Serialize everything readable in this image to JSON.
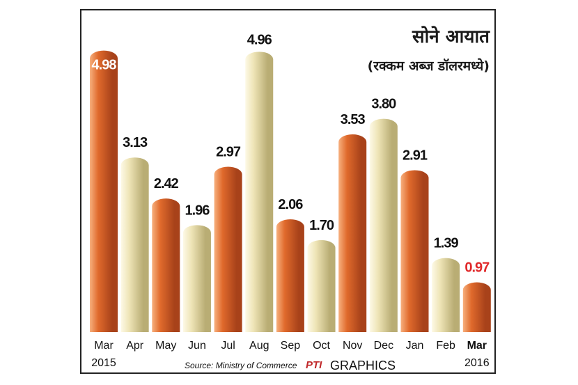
{
  "chart_data": {
    "type": "bar",
    "title": "सोने आयात",
    "subtitle": "(रक्कम अब्ज डॉलरमध्ये)",
    "categories": [
      "Mar",
      "Apr",
      "May",
      "Jun",
      "Jul",
      "Aug",
      "Sep",
      "Oct",
      "Nov",
      "Dec",
      "Jan",
      "Feb",
      "Mar"
    ],
    "year_labels": [
      "2015",
      "",
      "",
      "",
      "",
      "",
      "",
      "",
      "",
      "",
      "",
      "",
      "2016"
    ],
    "values": [
      4.98,
      3.13,
      2.42,
      1.96,
      2.97,
      4.96,
      2.06,
      1.7,
      3.53,
      3.8,
      2.91,
      1.39,
      0.97
    ],
    "value_labels": [
      "4.98",
      "3.13",
      "2.42",
      "1.96",
      "2.97",
      "4.96",
      "2.06",
      "1.70",
      "3.53",
      "3.80",
      "2.91",
      "1.39",
      "0.97"
    ],
    "bar_styles": [
      "orange",
      "cream",
      "orange",
      "cream",
      "orange",
      "cream",
      "orange",
      "cream",
      "orange",
      "cream",
      "orange",
      "cream",
      "orange"
    ],
    "highlight_index": 12,
    "ylim": [
      0,
      5.2
    ],
    "xlabel": "",
    "ylabel": "",
    "grid": false,
    "legend": "none"
  },
  "source": "Source: Ministry of Commerce",
  "credit": {
    "logo": "PTI",
    "text": "GRAPHICS"
  },
  "colors": {
    "orange_dark": "#a8421a",
    "orange_mid": "#e06a2c",
    "orange_light": "#f7b07e",
    "cream_dark": "#b9ad74",
    "cream_mid": "#eee4b6",
    "cream_light": "#fdf9e6",
    "highlight_label": "#e0282a"
  }
}
